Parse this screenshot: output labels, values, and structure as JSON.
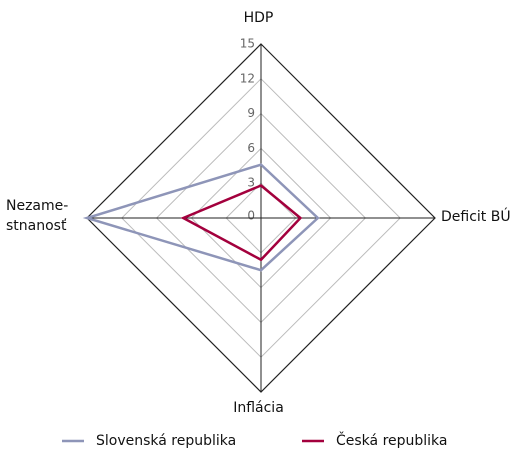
{
  "chart_data": {
    "type": "radar",
    "categories": [
      "HDP",
      "Deficit BÚ",
      "Inflácia",
      "Nezame-\nstnanosť"
    ],
    "series": [
      {
        "name": "Slovenská republika",
        "color": "#8e95b8",
        "values": [
          4.6,
          4.9,
          4.5,
          15
        ]
      },
      {
        "name": "Česká republika",
        "color": "#a3003d",
        "values": [
          2.8,
          3.4,
          3.6,
          6.7
        ]
      }
    ],
    "ylim": [
      0,
      15
    ],
    "yticks": [
      0,
      3,
      6,
      9,
      12,
      15
    ],
    "grid": true
  }
}
